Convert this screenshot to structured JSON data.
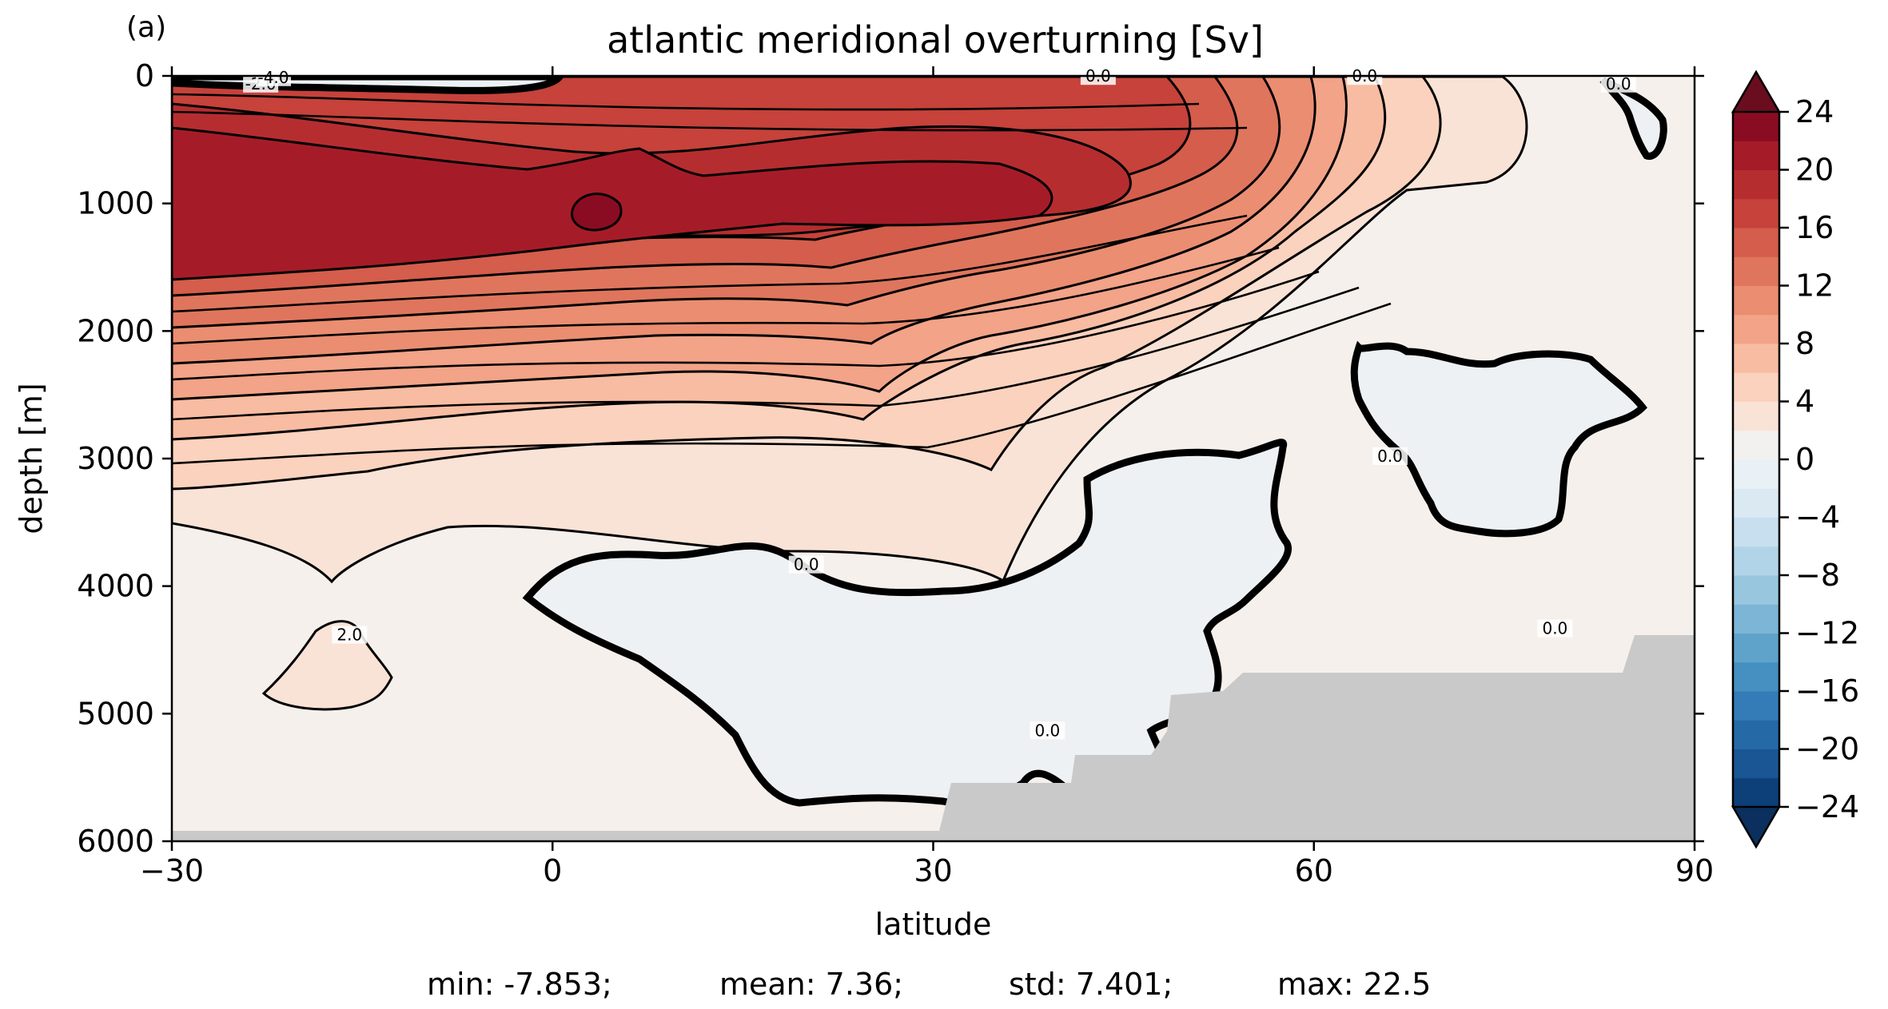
{
  "chart_data": {
    "type": "contour",
    "panel_label": "(a)",
    "title": "atlantic meridional overturning [Sv]",
    "xlabel": "latitude",
    "ylabel": "depth [m]",
    "xlim": [
      -30,
      90
    ],
    "ylim": [
      6000,
      0
    ],
    "xticks": [
      -30,
      0,
      30,
      60,
      90
    ],
    "xtick_labels": [
      "−30",
      "0",
      "30",
      "60",
      "90"
    ],
    "yticks": [
      0,
      1000,
      2000,
      3000,
      4000,
      5000,
      6000
    ],
    "ytick_labels": [
      "0",
      "1000",
      "2000",
      "3000",
      "4000",
      "5000",
      "6000"
    ],
    "y_inverted": true,
    "contour_interval": 2,
    "contour_labels": [
      {
        "text": "-2.0",
        "lat": -23,
        "depth": 80
      },
      {
        "text": "-4.0",
        "lat": -22,
        "depth": 30
      },
      {
        "text": "0.0",
        "lat": 43,
        "depth": 20
      },
      {
        "text": "0.0",
        "lat": 64,
        "depth": 20
      },
      {
        "text": "0.0",
        "lat": 84,
        "depth": 80
      },
      {
        "text": "0.0",
        "lat": 66,
        "depth": 3000
      },
      {
        "text": "0.0",
        "lat": 20,
        "depth": 3850
      },
      {
        "text": "2.0",
        "lat": -16,
        "depth": 4400
      },
      {
        "text": "0.0",
        "lat": 39,
        "depth": 5150
      },
      {
        "text": "0.0",
        "lat": 79,
        "depth": 4350
      }
    ],
    "colorbar": {
      "min": -24,
      "max": 24,
      "step": 2,
      "ticks": [
        24,
        20,
        16,
        12,
        8,
        4,
        0,
        -4,
        -8,
        -12,
        -16,
        -20,
        -24
      ],
      "tick_labels": [
        "24",
        "20",
        "16",
        "12",
        "8",
        "4",
        "0",
        "−4",
        "−8",
        "−12",
        "−16",
        "−20",
        "−24"
      ],
      "extend": "both",
      "colors": [
        "#0d3f79",
        "#1a5594",
        "#2669a7",
        "#337cb7",
        "#4590c1",
        "#5fa3cb",
        "#7cb5d6",
        "#99c6df",
        "#b1d4e8",
        "#c7dfee",
        "#dae9f2",
        "#e9f1f6",
        "#f3f1ef",
        "#f9e3d6",
        "#fbd2bd",
        "#f8bca2",
        "#f2a388",
        "#eb8d71",
        "#e0755d",
        "#d45d4c",
        "#c6423b",
        "#b62d30",
        "#a51c28",
        "#8a0c22"
      ],
      "over_color": "#6a0d1f",
      "under_color": "#0b2f5e"
    },
    "land_mask_color": "#c9c9c9",
    "stats": {
      "min": "min: -7.853;",
      "mean": "mean: 7.36;",
      "std": "std: 7.401;",
      "max": "max: 22.5"
    }
  }
}
